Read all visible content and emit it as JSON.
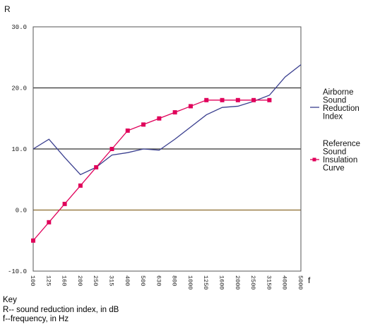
{
  "chart_data": {
    "type": "line",
    "ylabel": "R",
    "xlabel": "f",
    "ylim": [
      -10,
      30
    ],
    "yticks": [
      "-10.0",
      "0.0",
      "10.0",
      "20.0",
      "30.0"
    ],
    "categories": [
      "100",
      "125",
      "160",
      "200",
      "250",
      "315",
      "400",
      "500",
      "630",
      "800",
      "1000",
      "1250",
      "1600",
      "2000",
      "2500",
      "3150",
      "4000",
      "5000"
    ],
    "grid": "horizontal",
    "legend_position": "right",
    "series": [
      {
        "name": "Airborne Sound Reduction Index",
        "color": "#3a3f8f",
        "marker": "none",
        "values": [
          10.0,
          11.6,
          8.6,
          5.8,
          7.0,
          9.0,
          9.4,
          10.0,
          9.8,
          11.6,
          13.6,
          15.6,
          16.8,
          17.0,
          17.8,
          18.8,
          21.8,
          23.8
        ]
      },
      {
        "name": "Reference Sound Insulation Curve",
        "color": "#e0005a",
        "marker": "square",
        "values": [
          -5,
          -2,
          1,
          4,
          7,
          10,
          13,
          14,
          15,
          16,
          17,
          18,
          18,
          18,
          18,
          18,
          null,
          null
        ]
      }
    ]
  },
  "key": {
    "title": "Key",
    "lines": [
      "R-- sound reduction index, in dB",
      "f--frequency, in Hz"
    ]
  }
}
